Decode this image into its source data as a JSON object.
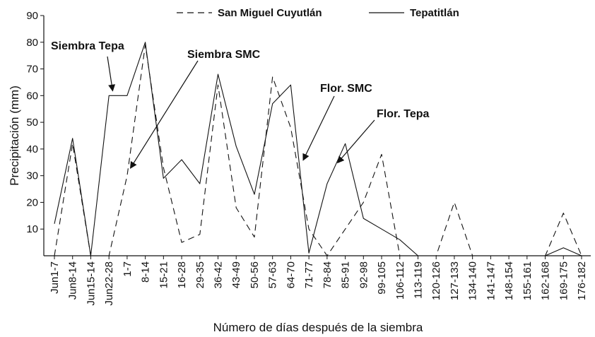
{
  "chart_data": {
    "type": "line",
    "title": "",
    "xlabel": "Número de días después de la siembra",
    "ylabel": "Precipitación (mm)",
    "ylim": [
      0,
      90
    ],
    "yticks": [
      10,
      20,
      30,
      40,
      50,
      60,
      70,
      80,
      90
    ],
    "grid": false,
    "legend_position": "top",
    "categories": [
      "Jun1-7",
      "Jun8-14",
      "Jun15-14",
      "Jun22-28",
      "1-7",
      "8-14",
      "15-21",
      "16-28",
      "29-35",
      "36-42",
      "43-49",
      "50-56",
      "57-63",
      "64-70",
      "71-77",
      "78-84",
      "85-91",
      "92-98",
      "99-105",
      "106-112",
      "113-119",
      "120-126",
      "127-133",
      "134-140",
      "141-147",
      "148-154",
      "155-161",
      "162-168",
      "169-175",
      "176-182"
    ],
    "series": [
      {
        "name": "San Miguel Cuyutlán",
        "style": "dashed",
        "points": [
          [
            0,
            0
          ],
          [
            1,
            42
          ],
          [
            2,
            0
          ],
          [
            3,
            0
          ],
          [
            4,
            30
          ],
          [
            5,
            79
          ],
          [
            6,
            33
          ],
          [
            7,
            5
          ],
          [
            8,
            8
          ],
          [
            9,
            64
          ],
          [
            10,
            18
          ],
          [
            11,
            7
          ],
          [
            12,
            67
          ],
          [
            13,
            48
          ],
          [
            14,
            10
          ],
          [
            15,
            0
          ],
          [
            16,
            10
          ],
          [
            17,
            20
          ],
          [
            18,
            38
          ],
          [
            19,
            0
          ],
          [
            20,
            0
          ],
          [
            21,
            0
          ],
          [
            22,
            20
          ],
          [
            23,
            0
          ],
          [
            24,
            0
          ],
          [
            25,
            0
          ],
          [
            26,
            0
          ],
          [
            27,
            0
          ],
          [
            28,
            16
          ],
          [
            29,
            0
          ]
        ]
      },
      {
        "name": "Tepatitlán",
        "style": "solid",
        "points": [
          [
            0,
            12
          ],
          [
            1,
            44
          ],
          [
            2,
            0
          ],
          [
            3,
            60
          ],
          [
            4,
            60
          ],
          [
            5,
            80
          ],
          [
            6,
            29
          ],
          [
            7,
            36
          ],
          [
            8,
            27
          ],
          [
            9,
            68
          ],
          [
            10,
            41
          ],
          [
            11,
            23
          ],
          [
            12,
            57
          ],
          [
            13,
            64
          ],
          [
            14,
            1
          ],
          [
            15,
            27
          ],
          [
            16,
            42
          ],
          [
            17,
            14
          ],
          [
            18,
            10
          ],
          [
            19,
            6
          ],
          [
            20,
            0
          ],
          [
            21,
            0
          ],
          [
            22,
            0
          ],
          [
            23,
            0
          ],
          [
            24,
            0
          ],
          [
            25,
            0
          ],
          [
            26,
            0
          ],
          [
            27,
            0
          ],
          [
            28,
            3
          ],
          [
            29,
            0
          ]
        ]
      }
    ],
    "annotations": [
      {
        "text": "Siembra Tepa",
        "x": 3.2,
        "y": 62
      },
      {
        "text": "Siembra SMC",
        "x": 4.2,
        "y": 33
      },
      {
        "text": "Flor. SMC",
        "x": 13.7,
        "y": 36
      },
      {
        "text": "Flor. Tepa",
        "x": 15.6,
        "y": 35
      }
    ]
  }
}
